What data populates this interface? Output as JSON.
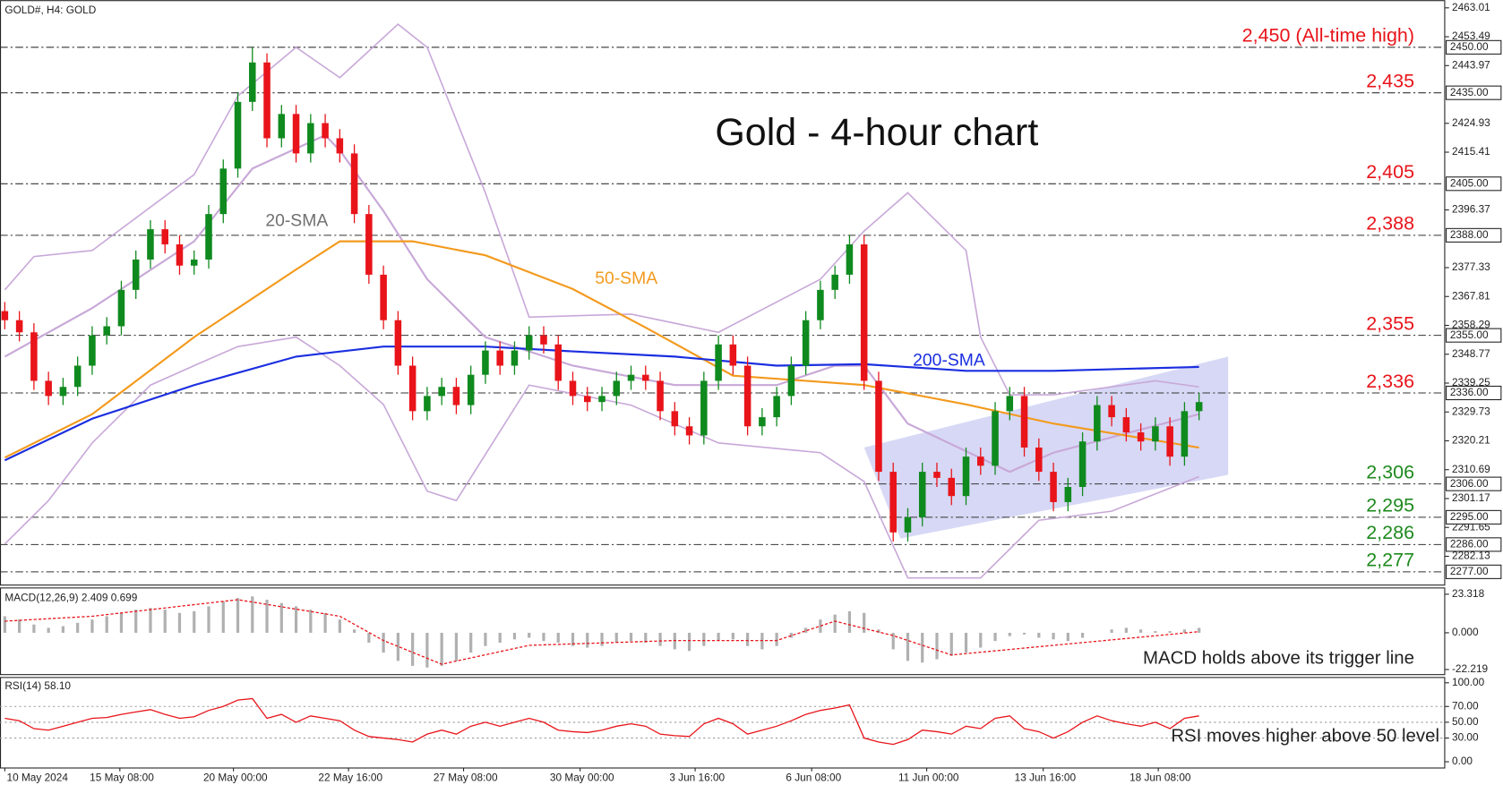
{
  "chart_data": {
    "type": "candlestick",
    "symbol": "GOLD#, H4:  GOLD",
    "title": "Gold - 4-hour chart",
    "up_color": "#0f8a1e",
    "down_color": "#e8141a",
    "xlim": [
      -0.33,
      98.9
    ],
    "ylim": [
      2272.8,
      2465.55
    ],
    "yticks": [
      2463.01,
      2453.49,
      2443.97,
      2424.93,
      2415.41,
      2396.37,
      2377.33,
      2367.81,
      2358.29,
      2348.77,
      2339.25,
      2329.73,
      2320.21,
      2310.69,
      2301.17,
      2291.65,
      2282.13
    ],
    "xticks": [
      {
        "value": 0,
        "label": "10 May 2024"
      },
      {
        "value": 7.9,
        "label": "15 May 08:00"
      },
      {
        "value": 15.7,
        "label": "20 May 00:00"
      },
      {
        "value": 23.6,
        "label": "22 May 16:00"
      },
      {
        "value": 31.5,
        "label": "27 May 08:00"
      },
      {
        "value": 39.5,
        "label": "30 May 00:00"
      },
      {
        "value": 47.4,
        "label": "3 Jun 16:00"
      },
      {
        "value": 55.4,
        "label": "6 Jun 08:00"
      },
      {
        "value": 63.3,
        "label": "11 Jun 00:00"
      },
      {
        "value": 71.3,
        "label": "13 Jun 16:00"
      },
      {
        "value": 79.2,
        "label": "18 Jun 08:00"
      }
    ],
    "ohlc": [
      [
        2363,
        2366,
        2357,
        2360
      ],
      [
        2360,
        2363,
        2353,
        2356
      ],
      [
        2356,
        2359,
        2337,
        2340
      ],
      [
        2340,
        2343,
        2332,
        2335
      ],
      [
        2335,
        2341,
        2332,
        2338
      ],
      [
        2338,
        2348,
        2335,
        2345
      ],
      [
        2345,
        2358,
        2342,
        2355
      ],
      [
        2355,
        2361,
        2352,
        2358
      ],
      [
        2358,
        2373,
        2355,
        2370
      ],
      [
        2370,
        2383,
        2367,
        2380
      ],
      [
        2380,
        2393,
        2377,
        2390
      ],
      [
        2390,
        2393,
        2382,
        2385
      ],
      [
        2385,
        2388,
        2375,
        2378
      ],
      [
        2378,
        2383,
        2375,
        2380
      ],
      [
        2380,
        2398,
        2377,
        2395
      ],
      [
        2395,
        2413,
        2392,
        2410
      ],
      [
        2410,
        2435,
        2407,
        2432
      ],
      [
        2432,
        2450,
        2429,
        2445
      ],
      [
        2445,
        2448,
        2417,
        2420
      ],
      [
        2420,
        2431,
        2417,
        2428
      ],
      [
        2428,
        2431,
        2412,
        2415
      ],
      [
        2415,
        2428,
        2412,
        2425
      ],
      [
        2425,
        2428,
        2417,
        2420
      ],
      [
        2420,
        2423,
        2412,
        2415
      ],
      [
        2415,
        2418,
        2392,
        2395
      ],
      [
        2395,
        2398,
        2372,
        2375
      ],
      [
        2375,
        2378,
        2357,
        2360
      ],
      [
        2360,
        2363,
        2342,
        2345
      ],
      [
        2345,
        2348,
        2327,
        2330
      ],
      [
        2330,
        2338,
        2327,
        2335
      ],
      [
        2335,
        2341,
        2332,
        2338
      ],
      [
        2338,
        2341,
        2329,
        2332
      ],
      [
        2332,
        2345,
        2329,
        2342
      ],
      [
        2342,
        2353,
        2339,
        2350
      ],
      [
        2350,
        2353,
        2342,
        2345
      ],
      [
        2345,
        2353,
        2342,
        2350
      ],
      [
        2350,
        2358,
        2347,
        2355
      ],
      [
        2355,
        2358,
        2349,
        2352
      ],
      [
        2352,
        2355,
        2337,
        2340
      ],
      [
        2340,
        2343,
        2332,
        2335
      ],
      [
        2335,
        2338,
        2330,
        2333
      ],
      [
        2333,
        2338,
        2330,
        2335
      ],
      [
        2335,
        2343,
        2332,
        2340
      ],
      [
        2340,
        2345,
        2337,
        2342
      ],
      [
        2342,
        2345,
        2337,
        2340
      ],
      [
        2340,
        2343,
        2327,
        2330
      ],
      [
        2330,
        2333,
        2322,
        2325
      ],
      [
        2325,
        2328,
        2319,
        2322
      ],
      [
        2322,
        2343,
        2319,
        2340
      ],
      [
        2340,
        2355,
        2337,
        2352
      ],
      [
        2352,
        2355,
        2342,
        2345
      ],
      [
        2345,
        2348,
        2322,
        2325
      ],
      [
        2325,
        2331,
        2322,
        2328
      ],
      [
        2328,
        2338,
        2325,
        2335
      ],
      [
        2335,
        2348,
        2332,
        2345
      ],
      [
        2345,
        2363,
        2342,
        2360
      ],
      [
        2360,
        2373,
        2357,
        2370
      ],
      [
        2370,
        2378,
        2367,
        2375
      ],
      [
        2375,
        2388,
        2372,
        2385
      ],
      [
        2385,
        2388,
        2337,
        2340
      ],
      [
        2340,
        2343,
        2307,
        2310
      ],
      [
        2310,
        2313,
        2287,
        2290
      ],
      [
        2290,
        2298,
        2287,
        2295
      ],
      [
        2295,
        2313,
        2292,
        2310
      ],
      [
        2310,
        2313,
        2305,
        2308
      ],
      [
        2308,
        2311,
        2299,
        2302
      ],
      [
        2302,
        2318,
        2299,
        2315
      ],
      [
        2315,
        2318,
        2309,
        2312
      ],
      [
        2312,
        2333,
        2309,
        2330
      ],
      [
        2330,
        2338,
        2327,
        2335
      ],
      [
        2335,
        2338,
        2315,
        2318
      ],
      [
        2318,
        2321,
        2307,
        2310
      ],
      [
        2310,
        2313,
        2297,
        2300
      ],
      [
        2300,
        2308,
        2297,
        2305
      ],
      [
        2305,
        2323,
        2302,
        2320
      ],
      [
        2320,
        2335,
        2317,
        2332
      ],
      [
        2332,
        2335,
        2325,
        2328
      ],
      [
        2328,
        2331,
        2320,
        2323
      ],
      [
        2323,
        2326,
        2317,
        2320
      ],
      [
        2320,
        2328,
        2317,
        2325
      ],
      [
        2325,
        2328,
        2312,
        2315
      ],
      [
        2315,
        2333,
        2312,
        2330
      ],
      [
        2330,
        2336,
        2327,
        2333
      ]
    ],
    "levels": [
      {
        "value": 2450,
        "label": "2,450 (All-time high)",
        "axis_label": "2450.00",
        "color": "#e8141a"
      },
      {
        "value": 2435,
        "label": "2,435",
        "axis_label": "2435.00",
        "color": "#e8141a"
      },
      {
        "value": 2405,
        "label": "2,405",
        "axis_label": "2405.00",
        "color": "#e8141a"
      },
      {
        "value": 2388,
        "label": "2,388",
        "axis_label": "2388.00",
        "color": "#e8141a"
      },
      {
        "value": 2355,
        "label": "2,355",
        "axis_label": "2355.00",
        "color": "#e8141a"
      },
      {
        "value": 2336,
        "label": "2,336",
        "axis_label": "2336.00",
        "color": "#e8141a"
      },
      {
        "value": 2306,
        "label": "2,306",
        "axis_label": "2306.00",
        "color": "#1e8a1e"
      },
      {
        "value": 2295,
        "label": "2,295",
        "axis_label": "2295.00",
        "color": "#1e8a1e"
      },
      {
        "value": 2286,
        "label": "2,286",
        "axis_label": "2286.00",
        "color": "#1e8a1e"
      },
      {
        "value": 2277,
        "label": "2,277",
        "axis_label": "2277.00",
        "color": "#1e8a1e"
      }
    ],
    "overlays": [
      {
        "name": "20-SMA",
        "color": "#c8a8d8",
        "label_color": "#707070",
        "x": [
          0,
          6,
          13,
          17,
          22,
          23,
          26,
          29,
          33,
          39,
          46,
          53,
          57,
          59,
          62,
          69,
          72,
          82
        ],
        "values": [
          2348,
          2364,
          2386,
          2410,
          2421,
          2416,
          2396,
          2373.5,
          2354.4,
          2345,
          2338.6,
          2338.6,
          2345,
          2345,
          2325.9,
          2310,
          2316.3,
          2329
        ]
      },
      {
        "name": "50-SMA",
        "color": "#f39a1e",
        "label_color": "#f39a1e",
        "x": [
          0,
          6,
          13,
          20,
          23,
          28,
          33,
          39,
          44,
          50,
          55,
          59,
          66,
          72,
          82
        ],
        "values": [
          2314.7,
          2329,
          2354.4,
          2376.7,
          2386,
          2386,
          2381.4,
          2370.3,
          2357.6,
          2341.7,
          2340,
          2338.6,
          2332.2,
          2325.9,
          2318
        ]
      },
      {
        "name": "200-SMA",
        "color": "#1a2ee0",
        "label_color": "#1a2ee0",
        "x": [
          0,
          6,
          13,
          20,
          26,
          33,
          39,
          46,
          53,
          59,
          66,
          72,
          82
        ],
        "values": [
          2313.8,
          2327.5,
          2338.6,
          2348,
          2351.3,
          2351.3,
          2349.7,
          2348,
          2345,
          2345.5,
          2343.3,
          2343.3,
          2344.6
        ]
      }
    ],
    "bands": [
      {
        "color": "#c8a8d8",
        "x": [
          0,
          2,
          6,
          13,
          16,
          20,
          23,
          27,
          29,
          33,
          36,
          43,
          49,
          56,
          59,
          62,
          66,
          67,
          69,
          72,
          79,
          82
        ],
        "values": [
          2370,
          2381,
          2383,
          2408,
          2434,
          2450,
          2440,
          2457.6,
          2450,
          2402,
          2361,
          2362,
          2356,
          2373.5,
          2389.4,
          2402,
          2383,
          2354.4,
          2335.4,
          2335.4,
          2340,
          2338
        ]
      },
      {
        "color": "#c8a8d8",
        "x": [
          0,
          3,
          6,
          10,
          13,
          16,
          20,
          23,
          26,
          29,
          31,
          36,
          43,
          49,
          56,
          59,
          62,
          67,
          71,
          76,
          82
        ],
        "values": [
          2286.2,
          2300.5,
          2319.5,
          2338.6,
          2345,
          2351.3,
          2354.4,
          2345,
          2332.2,
          2303.6,
          2300.5,
          2338.6,
          2332,
          2319.5,
          2316.3,
          2306.8,
          2275,
          2275,
          2294,
          2297,
          2308.4
        ]
      }
    ],
    "channel": {
      "color": "#c9cbf2",
      "upper": {
        "x": [
          59,
          84
        ],
        "values": [
          2318,
          2348
        ]
      },
      "lower": {
        "x": [
          61.5,
          84
        ],
        "values": [
          2288,
          2309
        ]
      }
    },
    "macd": {
      "title": "MACD(12,26,9) 2.409 0.699",
      "annotation": "MACD holds above its trigger line",
      "ylim": [
        -25,
        27.4
      ],
      "yticks": [
        23.318,
        {
          "value": 0,
          "label": "0.000"
        },
        -22.219
      ],
      "histogram_color": "#b0b0b0",
      "signal_color": "#e8141a",
      "histogram": [
        10,
        8,
        5,
        3,
        4,
        6,
        8,
        10,
        12,
        14,
        15,
        14,
        12,
        13,
        16,
        19,
        21,
        22,
        20,
        18,
        16,
        14,
        12,
        8,
        2,
        -6,
        -12,
        -17,
        -20,
        -21,
        -20,
        -17,
        -12,
        -8,
        -6,
        -4,
        -3,
        -5,
        -6,
        -8,
        -9,
        -8,
        -6,
        -5,
        -6,
        -8,
        -10,
        -11,
        -8,
        -5,
        -4,
        -8,
        -10,
        -8,
        -3,
        3,
        8,
        11,
        13,
        12,
        2,
        -10,
        -17,
        -18,
        -16,
        -14,
        -12,
        -9,
        -5,
        -2,
        -1,
        -3,
        -4,
        -5,
        -3,
        0,
        2,
        3,
        2,
        1,
        1,
        2,
        3
      ],
      "signal": {
        "x": [
          0,
          6,
          16,
          23,
          26,
          30,
          36,
          46,
          53,
          57,
          61,
          65,
          72,
          82
        ],
        "values": [
          7,
          10,
          20,
          10,
          -4.7,
          -19,
          -7.6,
          -4.7,
          -4.7,
          7,
          -1.7,
          -13.4,
          -7.6,
          0.7
        ]
      }
    },
    "rsi": {
      "title": "RSI(14) 58.10",
      "annotation": "RSI moves higher above 50 level",
      "ylim": [
        -7.3,
        107.3
      ],
      "color": "#e8141a",
      "yticks": [
        {
          "value": 100,
          "label": "100.00"
        },
        {
          "value": 70,
          "label": "70.00"
        },
        {
          "value": 50,
          "label": "50.00"
        },
        {
          "value": 30,
          "label": "30.00"
        },
        {
          "value": 0,
          "label": "0.00"
        }
      ],
      "grid_levels": [
        70,
        50,
        30
      ],
      "values": [
        55,
        52,
        42,
        40,
        45,
        50,
        55,
        56,
        60,
        63,
        66,
        60,
        55,
        57,
        65,
        70,
        78,
        80,
        55,
        60,
        50,
        58,
        55,
        52,
        40,
        32,
        30,
        28,
        25,
        35,
        40,
        35,
        45,
        50,
        45,
        50,
        55,
        50,
        40,
        38,
        37,
        40,
        45,
        48,
        45,
        35,
        33,
        32,
        48,
        55,
        48,
        35,
        40,
        45,
        52,
        60,
        65,
        68,
        72,
        30,
        25,
        22,
        28,
        40,
        38,
        35,
        45,
        42,
        55,
        58,
        42,
        38,
        30,
        38,
        50,
        58,
        52,
        48,
        45,
        50,
        42,
        55,
        58
      ]
    }
  }
}
